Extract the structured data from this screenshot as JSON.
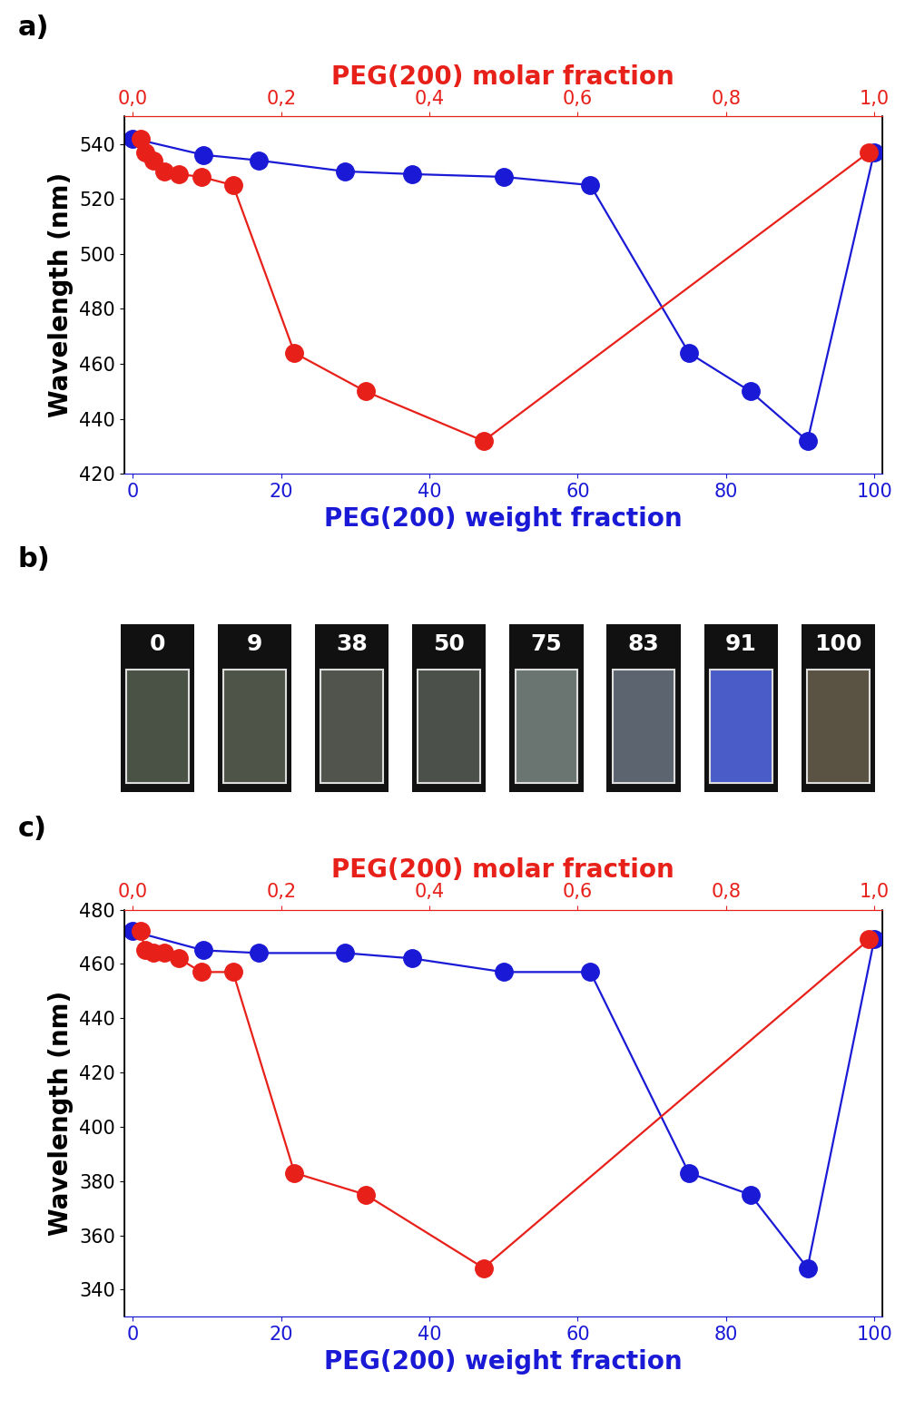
{
  "chart_data": [
    {
      "type": "line",
      "panel_label": "a)",
      "xlabel": "PEG(200) weight fraction",
      "x2label": "PEG(200) molar fraction",
      "ylabel": "Wavelength (nm)",
      "xlim": [
        -1.2,
        101.1
      ],
      "xticks": [
        0,
        20,
        40,
        60,
        80,
        100
      ],
      "x2lim": [
        -0.012,
        1.011
      ],
      "x2ticks": [
        {
          "value": 0.0,
          "label": "0,0"
        },
        {
          "value": 0.2,
          "label": "0,2"
        },
        {
          "value": 0.4,
          "label": "0,4"
        },
        {
          "value": 0.6,
          "label": "0,6"
        },
        {
          "value": 0.8,
          "label": "0,8"
        },
        {
          "value": 1.0,
          "label": "1,0"
        }
      ],
      "ylim": [
        420,
        550
      ],
      "yticks": [
        420,
        440,
        460,
        480,
        500,
        520,
        540
      ],
      "series": [
        {
          "axis": "x",
          "color": "#1a1ad6",
          "marker": "o",
          "x": [
            0,
            9.5,
            17,
            28.6,
            37.7,
            50,
            61.7,
            75,
            83.3,
            91,
            100
          ],
          "values": [
            542,
            536,
            534,
            530,
            529,
            528,
            525,
            464,
            450,
            432,
            537
          ]
        },
        {
          "axis": "x2",
          "color": "#e8201a",
          "marker": "o",
          "x": [
            0.01,
            0.017,
            0.028,
            0.042,
            0.062,
            0.092,
            0.135,
            0.218,
            0.314,
            0.473,
            0.993
          ],
          "values": [
            542,
            537,
            534,
            530,
            529,
            528,
            525,
            464,
            450,
            432,
            537
          ]
        }
      ]
    },
    {
      "type": "photo_strip",
      "panel_label": "b)",
      "categories": [
        "0",
        "9",
        "38",
        "50",
        "75",
        "83",
        "91",
        "100"
      ],
      "colors": [
        "#4a5246",
        "#4e5448",
        "#50544c",
        "#4c504a",
        "#6a7470",
        "#5c6470",
        "#4a5cc8",
        "#5a5242"
      ]
    },
    {
      "type": "line",
      "panel_label": "c)",
      "xlabel": "PEG(200) weight fraction",
      "x2label": "PEG(200) molar fraction",
      "ylabel": "Wavelength (nm)",
      "xlim": [
        -1.2,
        101.1
      ],
      "xticks": [
        0,
        20,
        40,
        60,
        80,
        100
      ],
      "x2lim": [
        -0.012,
        1.011
      ],
      "x2ticks": [
        {
          "value": 0.0,
          "label": "0,0"
        },
        {
          "value": 0.2,
          "label": "0,2"
        },
        {
          "value": 0.4,
          "label": "0,4"
        },
        {
          "value": 0.6,
          "label": "0,6"
        },
        {
          "value": 0.8,
          "label": "0,8"
        },
        {
          "value": 1.0,
          "label": "1,0"
        }
      ],
      "ylim": [
        330,
        480
      ],
      "yticks": [
        340,
        360,
        380,
        400,
        420,
        440,
        460,
        480
      ],
      "series": [
        {
          "axis": "x",
          "color": "#1a1ad6",
          "marker": "o",
          "x": [
            0,
            9.5,
            17,
            28.6,
            37.7,
            50,
            61.7,
            75,
            83.3,
            91,
            100
          ],
          "values": [
            472,
            465,
            464,
            464,
            462,
            457,
            457,
            383,
            375,
            348,
            469
          ]
        },
        {
          "axis": "x2",
          "color": "#e8201a",
          "marker": "o",
          "x": [
            0.01,
            0.017,
            0.028,
            0.042,
            0.062,
            0.092,
            0.135,
            0.218,
            0.314,
            0.473,
            0.993
          ],
          "values": [
            472,
            465,
            464,
            464,
            462,
            457,
            457,
            383,
            375,
            348,
            469
          ]
        }
      ]
    }
  ]
}
